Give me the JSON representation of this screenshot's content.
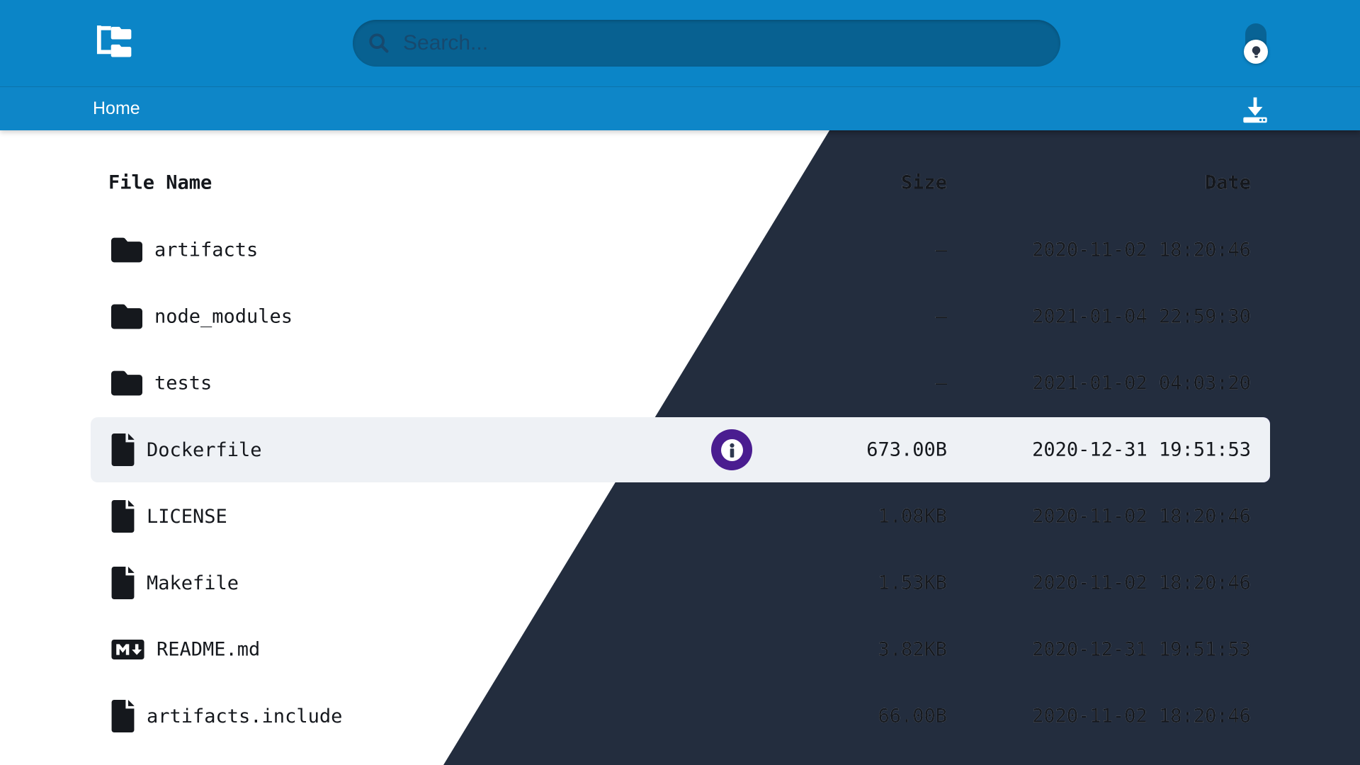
{
  "header": {
    "logo_icon": "folder-tree-icon",
    "search": {
      "placeholder": "Search..."
    },
    "theme_toggle_icon": "lightbulb-icon"
  },
  "breadcrumb": {
    "current": "Home",
    "download_icon": "download-icon"
  },
  "table": {
    "columns": {
      "name": "File Name",
      "size": "Size",
      "date": "Date"
    },
    "rows": [
      {
        "icon": "folder-icon",
        "name": "artifacts",
        "size": "—",
        "date": "2020-11-02 18:20:46",
        "selected": false
      },
      {
        "icon": "folder-icon",
        "name": "node_modules",
        "size": "—",
        "date": "2021-01-04 22:59:30",
        "selected": false
      },
      {
        "icon": "folder-icon",
        "name": "tests",
        "size": "—",
        "date": "2021-01-02 04:03:20",
        "selected": false
      },
      {
        "icon": "file-icon",
        "name": "Dockerfile",
        "size": "673.00B",
        "date": "2020-12-31 19:51:53",
        "selected": true,
        "info_icon": "info-icon"
      },
      {
        "icon": "file-icon",
        "name": "LICENSE",
        "size": "1.08KB",
        "date": "2020-11-02 18:20:46",
        "selected": false
      },
      {
        "icon": "file-icon",
        "name": "Makefile",
        "size": "1.53KB",
        "date": "2020-11-02 18:20:46",
        "selected": false
      },
      {
        "icon": "markdown-icon",
        "name": "README.md",
        "size": "3.82KB",
        "date": "2020-12-31 19:51:53",
        "selected": false
      },
      {
        "icon": "file-icon",
        "name": "artifacts.include",
        "size": "66.00B",
        "date": "2020-11-02 18:20:46",
        "selected": false
      }
    ]
  },
  "themes": {
    "light": {
      "header": "#0b85c7",
      "crumb": "#0e86c8",
      "bg": "#ffffff",
      "text": "#15181d",
      "row_highlight": "#eef1f5",
      "search_fg": "#17496e",
      "info_bg": "#4a1d90"
    },
    "dark": {
      "header": "#722ae0",
      "crumb": "#6d28d9",
      "bg": "#232d3e",
      "text": "#f2f4f8",
      "row_highlight": "#6c2bd8",
      "search_fg": "#251e4e",
      "info_bg": "#4a1d90"
    }
  }
}
